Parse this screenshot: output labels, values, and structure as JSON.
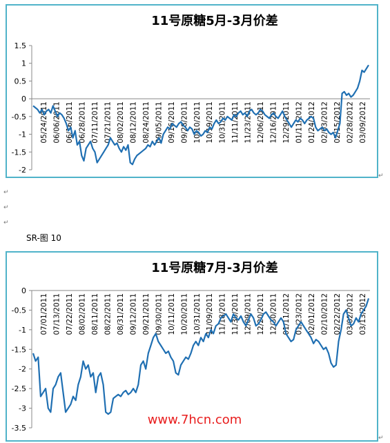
{
  "caption": "SR-图 10",
  "paragraph_mark": "↵",
  "watermark": "www.7hcn.com",
  "watermark_color": "#e81d1d",
  "line_color": "#1f6fb2",
  "frame_color": "#4fb3c9",
  "chart_data": [
    {
      "type": "line",
      "title": "11号原糖5月-3月价差",
      "xlabel": "",
      "ylabel": "",
      "ylim": [
        -2,
        1.5
      ],
      "yticks": [
        -2,
        -1.5,
        -1,
        -0.5,
        0,
        0.5,
        1,
        1.5
      ],
      "grid": false,
      "legend": "none",
      "x_tick_labels": [
        "05/24/2011",
        "06/06/2011",
        "06/16/2011",
        "06/28/2011",
        "07/11/2011",
        "07/21/2011",
        "08/02/2011",
        "08/12/2011",
        "08/24/2011",
        "09/05/2011",
        "09/16/2011",
        "09/28/2011",
        "10/10/2011",
        "10/19/2011",
        "10/31/2011",
        "11/11/2011",
        "11/23/2011",
        "12/06/2011",
        "12/16/2011",
        "12/29/2011",
        "01/11/2012",
        "01/24/2012",
        "02/03/2012",
        "02/15/2012",
        "02/28/2012",
        "03/09/2012"
      ],
      "x_tick_labels_display": [
        "05/24/2011",
        "06/06/2011",
        "06/16/2011",
        "06/28/2011",
        "07/11/2011",
        "07/21/2011",
        "08/02/2011",
        "08/12/2011",
        "08/24/2011",
        "09/05/2011",
        "09/16/2011",
        "09/28/2011",
        "10/10/2011",
        "10/19/2011",
        "10/31/2011",
        "11/11/2011",
        "11/23/2011",
        "12/06/2011",
        "12/16/2011",
        "12/29/2011",
        "01/11/2012",
        "01/24/2012",
        "02/03/2012",
        "02/15/2012",
        "02/28/2012",
        "03/09/2012"
      ],
      "values": [
        -0.2,
        -0.25,
        -0.3,
        -0.4,
        -0.3,
        -0.45,
        -0.35,
        -0.3,
        -0.4,
        -0.2,
        -0.35,
        -0.5,
        -0.4,
        -0.45,
        -0.55,
        -0.7,
        -0.9,
        -0.8,
        -1.1,
        -0.9,
        -1.3,
        -1.2,
        -1.6,
        -1.75,
        -1.4,
        -1.3,
        -1.2,
        -1.4,
        -1.5,
        -1.8,
        -1.7,
        -1.6,
        -1.5,
        -1.4,
        -1.3,
        -1.1,
        -1.2,
        -1.3,
        -1.25,
        -1.4,
        -1.5,
        -1.35,
        -1.45,
        -1.3,
        -1.8,
        -1.85,
        -1.7,
        -1.6,
        -1.55,
        -1.5,
        -1.45,
        -1.4,
        -1.3,
        -1.35,
        -1.2,
        -1.3,
        -1.2,
        -1.1,
        -1.25,
        -1.0,
        -0.9,
        -0.8,
        -0.85,
        -0.7,
        -0.75,
        -0.8,
        -0.7,
        -0.65,
        -0.75,
        -0.8,
        -0.9,
        -0.8,
        -0.85,
        -1.0,
        -0.9,
        -0.95,
        -1.05,
        -1.0,
        -0.9,
        -0.95,
        -0.8,
        -0.85,
        -0.7,
        -0.6,
        -0.7,
        -0.65,
        -0.55,
        -0.6,
        -0.5,
        -0.55,
        -0.6,
        -0.45,
        -0.5,
        -0.4,
        -0.35,
        -0.45,
        -0.4,
        -0.5,
        -0.35,
        -0.3,
        -0.4,
        -0.45,
        -0.4,
        -0.3,
        -0.35,
        -0.45,
        -0.5,
        -0.55,
        -0.45,
        -0.4,
        -0.5,
        -0.55,
        -0.45,
        -0.35,
        -0.5,
        -0.6,
        -0.7,
        -0.8,
        -0.7,
        -0.6,
        -0.65,
        -0.55,
        -0.6,
        -0.7,
        -0.6,
        -0.55,
        -0.5,
        -0.55,
        -0.8,
        -0.9,
        -0.85,
        -0.8,
        -0.9,
        -0.85,
        -0.95,
        -1.0,
        -0.95,
        -1.1,
        -0.9,
        -0.7,
        0.15,
        0.2,
        0.1,
        0.15,
        0.05,
        0.1,
        0.2,
        0.3,
        0.5,
        0.8,
        0.75,
        0.85,
        0.95
      ],
      "series": [
        {
          "values": []
        }
      ]
    },
    {
      "type": "line",
      "title": "11号原糖7月-3月价差",
      "xlabel": "",
      "ylabel": "",
      "ylim": [
        -3.5,
        0
      ],
      "yticks": [
        -3.5,
        -3,
        -2.5,
        -2,
        -1.5,
        -1,
        -0.5,
        0
      ],
      "grid": false,
      "legend": "none",
      "x_tick_labels": [
        "07/01/2011",
        "07/13/2011",
        "07/22/2011",
        "08/02/2011",
        "08/11/2011",
        "08/22/2011",
        "08/31/2011",
        "09/12/2011",
        "09/21/2011",
        "09/30/2011",
        "10/11/2011",
        "10/20/2011",
        "10/31/2011",
        "11/09/2011",
        "11/18/2011",
        "11/30/2011",
        "12/09/2011",
        "12/20/2011",
        "12/30/2011",
        "01/11/2012",
        "01/23/2012",
        "02/01/2012",
        "02/10/2012",
        "02/22/2012",
        "03/02/2012",
        "03/13/2012"
      ],
      "values": [
        -1.6,
        -1.8,
        -1.7,
        -2.7,
        -2.6,
        -2.5,
        -3.0,
        -3.1,
        -2.5,
        -2.4,
        -2.2,
        -2.1,
        -2.6,
        -3.1,
        -3.0,
        -2.9,
        -2.7,
        -2.8,
        -2.4,
        -2.2,
        -1.8,
        -2.0,
        -1.9,
        -2.2,
        -2.1,
        -2.6,
        -2.2,
        -2.1,
        -2.4,
        -3.1,
        -3.15,
        -3.1,
        -2.75,
        -2.7,
        -2.65,
        -2.7,
        -2.6,
        -2.55,
        -2.65,
        -2.6,
        -2.5,
        -2.6,
        -2.4,
        -1.9,
        -1.8,
        -2.0,
        -1.6,
        -1.4,
        -1.2,
        -1.1,
        -1.3,
        -1.4,
        -1.5,
        -1.6,
        -1.55,
        -1.7,
        -1.8,
        -2.1,
        -2.15,
        -1.9,
        -1.8,
        -1.7,
        -1.75,
        -1.6,
        -1.4,
        -1.3,
        -1.4,
        -1.2,
        -1.3,
        -1.1,
        -1.2,
        -1.0,
        -1.1,
        -0.9,
        -0.85,
        -0.7,
        -0.65,
        -0.6,
        -0.7,
        -0.8,
        -0.6,
        -0.7,
        -0.75,
        -0.65,
        -0.8,
        -0.9,
        -0.75,
        -0.6,
        -0.7,
        -0.9,
        -0.85,
        -0.75,
        -0.6,
        -0.55,
        -0.65,
        -0.75,
        -0.8,
        -0.9,
        -0.8,
        -0.7,
        -0.8,
        -1.1,
        -1.2,
        -1.3,
        -1.25,
        -1.0,
        -0.9,
        -0.8,
        -0.9,
        -1.0,
        -1.1,
        -1.2,
        -1.35,
        -1.25,
        -1.3,
        -1.4,
        -1.5,
        -1.45,
        -1.6,
        -1.85,
        -1.95,
        -1.9,
        -1.3,
        -1.0,
        -0.6,
        -0.5,
        -0.7,
        -0.9,
        -0.85,
        -0.7,
        -0.8,
        -0.6,
        -0.5,
        -0.4,
        -0.2
      ],
      "series": [
        {
          "values": []
        }
      ]
    }
  ]
}
